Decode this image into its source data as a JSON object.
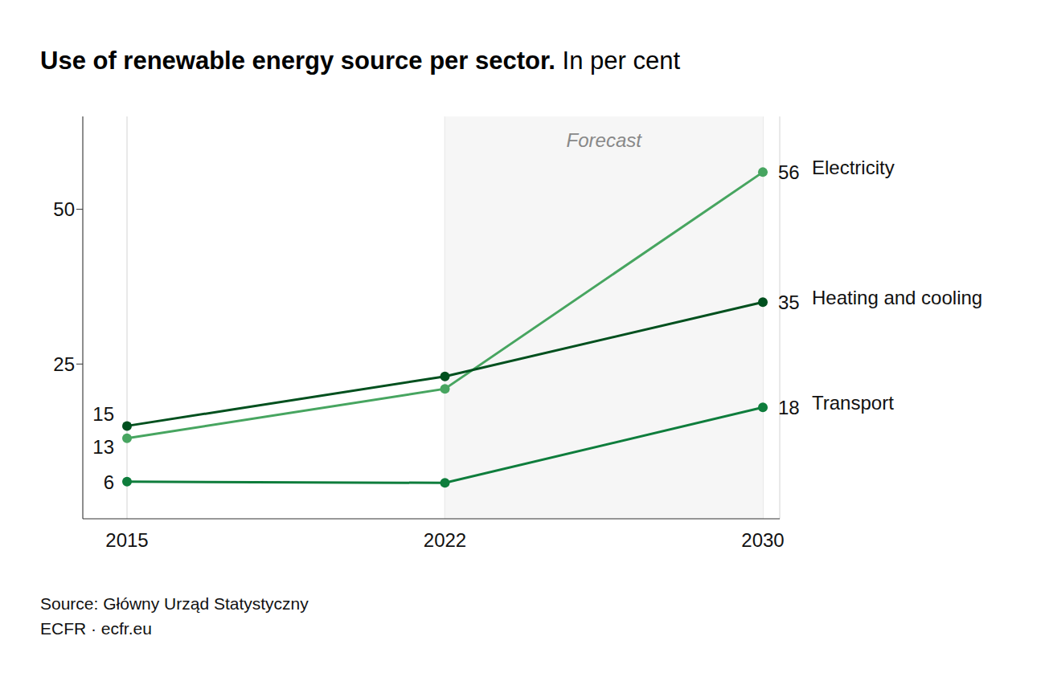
{
  "chart_data": {
    "type": "line",
    "title": "Use of renewable energy source per sector.",
    "subtitle": "In per cent",
    "categories": [
      "2015",
      "2022",
      "2030"
    ],
    "series": [
      {
        "name": "Electricity",
        "color": "#47a560",
        "values": [
          13,
          21,
          56
        ],
        "value_labels": [
          "13",
          null,
          "56"
        ],
        "marker": "circle"
      },
      {
        "name": "Heating and cooling",
        "color": "#00501e",
        "values": [
          15,
          23,
          35
        ],
        "value_labels": [
          "15",
          null,
          "35"
        ],
        "marker": "circle"
      },
      {
        "name": "Transport",
        "color": "#0e7d3c",
        "values": [
          6,
          5.8,
          18
        ],
        "value_labels": [
          "6",
          null,
          "18"
        ],
        "marker": "circle"
      }
    ],
    "ylim": [
      0,
      65
    ],
    "yticks": [
      25,
      50
    ],
    "grid": true,
    "annotations": [
      {
        "text": "Forecast",
        "x_from": "2022",
        "x_to": "2030"
      }
    ],
    "source": "Source: Główny Urząd Statystyczny",
    "credit": "ECFR · ecfr.eu"
  }
}
